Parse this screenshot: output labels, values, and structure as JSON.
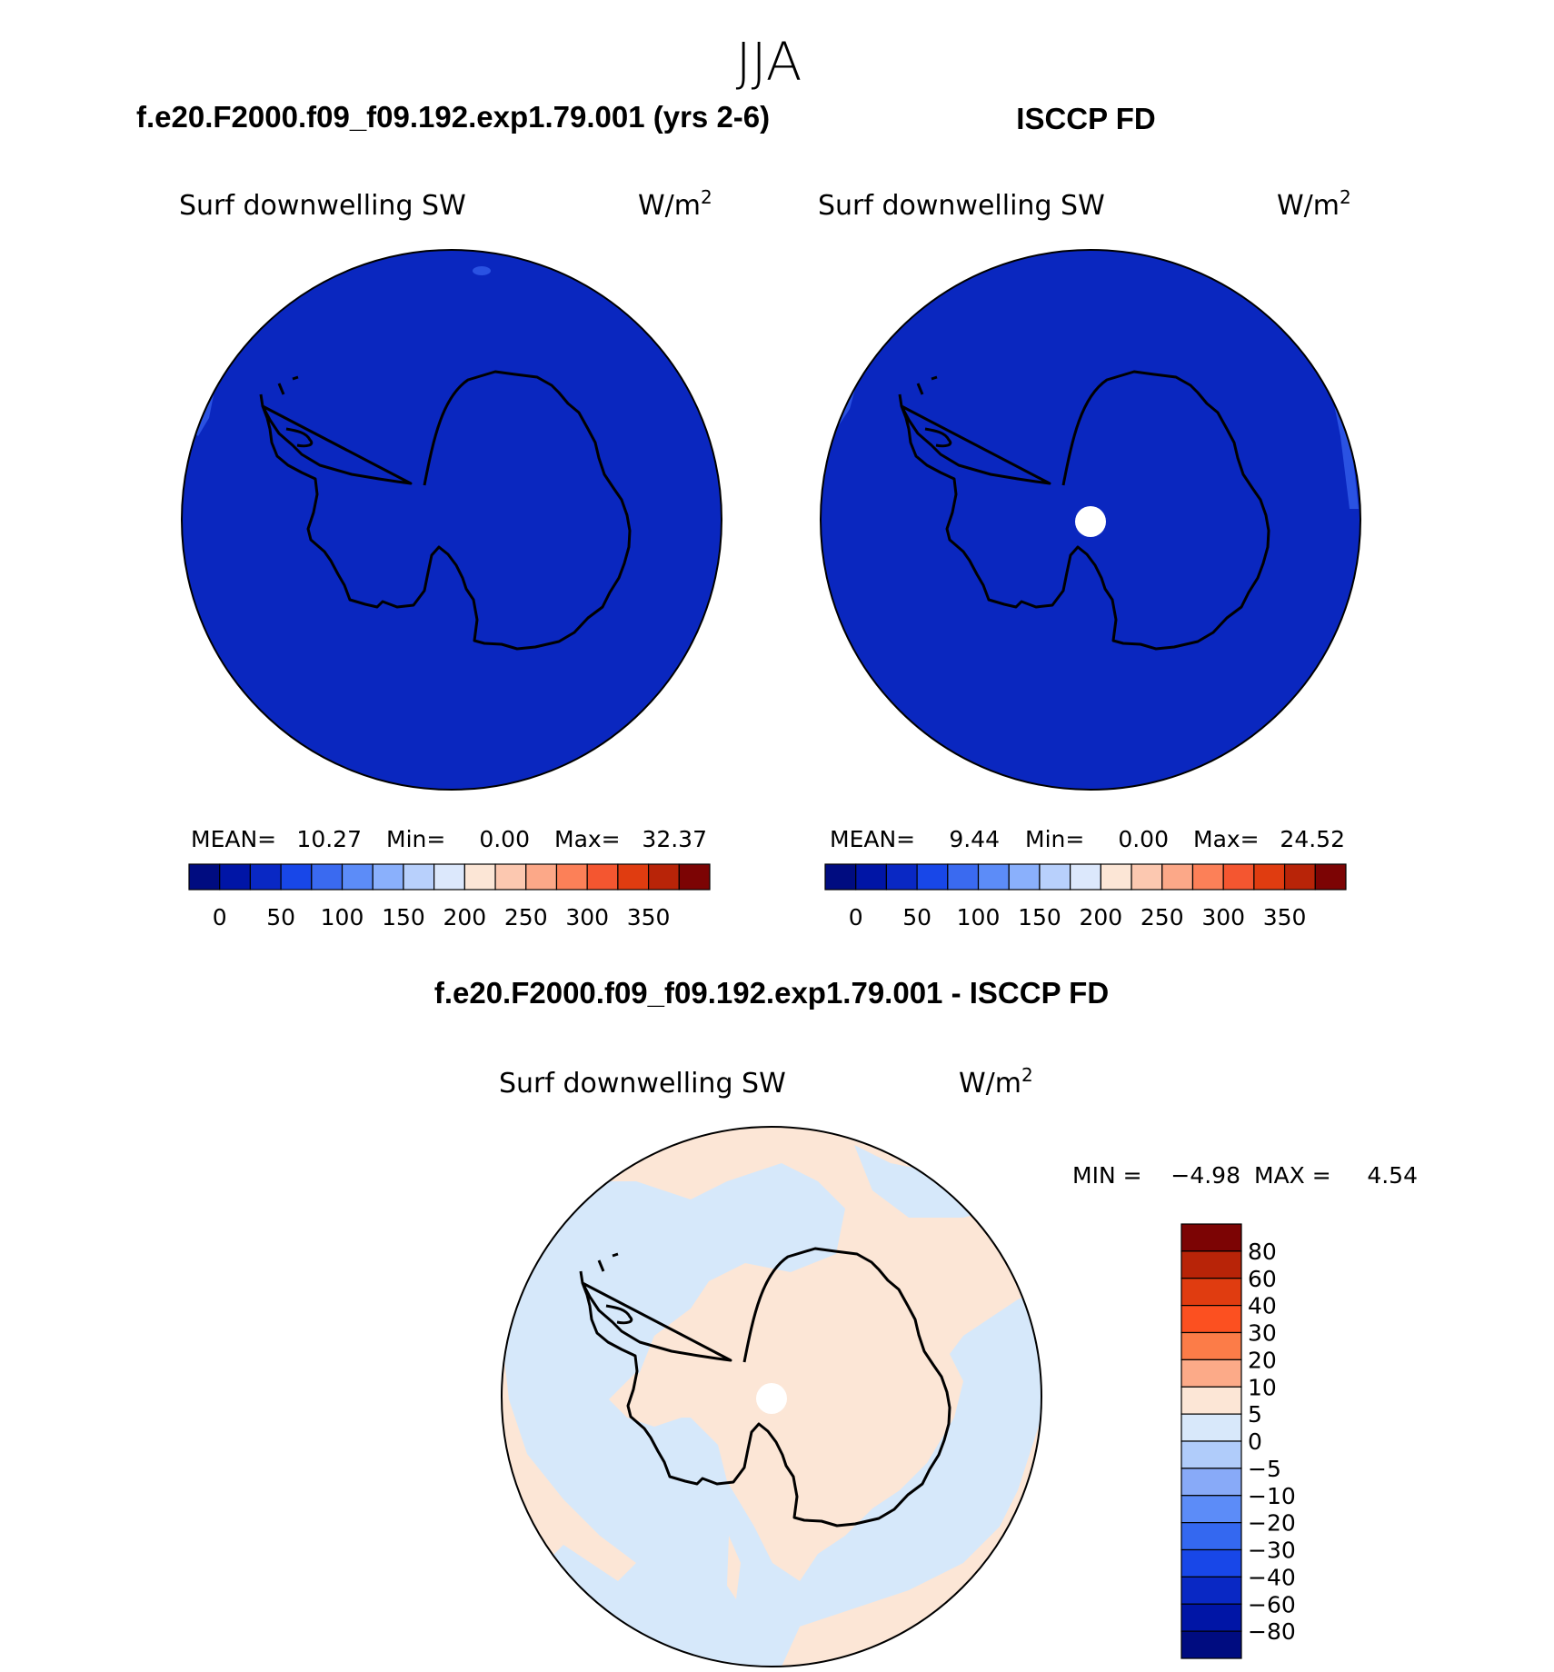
{
  "page": {
    "title": "JJA",
    "left_panel_title": "f.e20.F2000.f09_f09.192.exp1.79.001 (yrs 2-6)",
    "right_panel_title": "ISCCP FD",
    "diff_panel_title": "f.e20.F2000.f09_f09.192.exp1.79.001 - ISCCP FD"
  },
  "panels": {
    "left": {
      "variable": "Surf downwelling SW",
      "units": "W/m",
      "units_sup": "2",
      "mean_label": "MEAN=",
      "mean": "10.27",
      "min_label": "Min=",
      "min": "0.00",
      "max_label": "Max=",
      "max": "32.37"
    },
    "right": {
      "variable": "Surf downwelling SW",
      "units": "W/m",
      "units_sup": "2",
      "mean_label": "MEAN=",
      "mean": "9.44",
      "min_label": "Min=",
      "min": "0.00",
      "max_label": "Max=",
      "max": "24.52"
    },
    "diff": {
      "variable": "Surf downwelling SW",
      "units": "W/m",
      "units_sup": "2",
      "min_label": "MIN =",
      "min": "−4.98",
      "max_label": "MAX =",
      "max": "4.54"
    }
  },
  "colorbars": {
    "abs": {
      "colors": [
        "#000c80",
        "#0015a6",
        "#0928c4",
        "#1847e8",
        "#3a6af0",
        "#5c8cf8",
        "#8ab0fc",
        "#b8d0fc",
        "#dce8fc",
        "#fce6d6",
        "#fcc8b0",
        "#fca888",
        "#fc8058",
        "#f45630",
        "#e03c10",
        "#b82408",
        "#7c0404"
      ],
      "tick_labels": [
        "0",
        "50",
        "100",
        "150",
        "200",
        "250",
        "300",
        "350"
      ]
    },
    "diff": {
      "colors": [
        "#7c0404",
        "#b82408",
        "#e03c10",
        "#fc5020",
        "#fc7c48",
        "#fcaa88",
        "#fce6d6",
        "#d8e8fa",
        "#b0ccfa",
        "#88aaf8",
        "#5c8cf8",
        "#3468f0",
        "#1847e8",
        "#0928c4",
        "#0015a6",
        "#000c80"
      ],
      "tick_labels": [
        "80",
        "60",
        "40",
        "30",
        "20",
        "10",
        "5",
        "0",
        "−5",
        "−10",
        "−20",
        "−30",
        "−40",
        "−60",
        "−80"
      ]
    }
  },
  "map_colors": {
    "abs_fill": "#0a27bf",
    "abs_edge": "#2a52e2",
    "diff_light_red": "#fce6d6",
    "diff_light_blue": "#d6e8fa",
    "missing": "#ffffff"
  }
}
